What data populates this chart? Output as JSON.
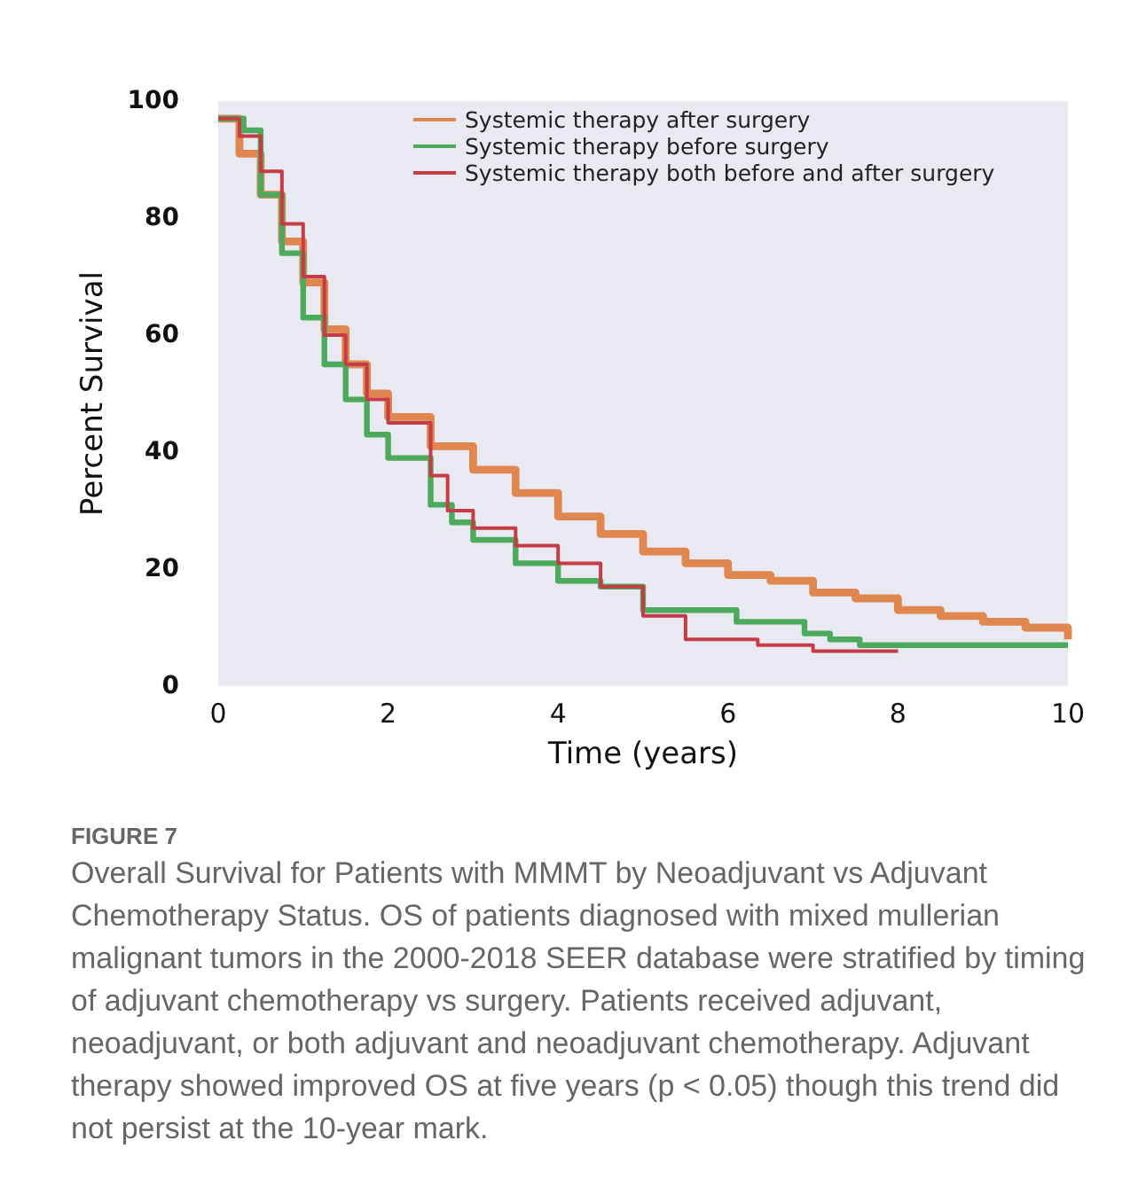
{
  "chart_data": {
    "type": "step",
    "title": "FIGURE 7",
    "xlabel": "Time (years)",
    "ylabel": "Percent Survival",
    "annotations": [
      "Overall Survival for Patients with MMMT by Neoadjuvant vs Adjuvant Chemotherapy Status. OS of patients diagnosed with mixed mullerian malignant tumors in the 2000-2018 SEER database were stratified by timing of adjuvant chemotherapy vs surgery. Patients received adjuvant, neoadjuvant, or both adjuvant and neoadjuvant chemotherapy. Adjuvant therapy showed improved OS at five years (p < 0.05) though this trend did not persist at the 10-year mark."
    ],
    "xlim": [
      0,
      10
    ],
    "xticks": [
      0,
      2,
      4,
      6,
      8,
      10
    ],
    "ylim": [
      0,
      100
    ],
    "yticks": [
      0,
      20,
      40,
      60,
      80,
      100
    ],
    "grid": false,
    "legend": "top right",
    "marker": "none",
    "line_style": "solid",
    "series": [
      {
        "name": "Systemic therapy after surgery",
        "color": "#e0874f",
        "x": [
          0,
          0.25,
          0.5,
          0.75,
          1,
          1.25,
          1.5,
          1.75,
          2,
          2.5,
          3,
          3.5,
          4,
          4.5,
          5,
          5.5,
          6,
          6.5,
          7,
          7.5,
          8,
          8.5,
          9,
          9.5,
          10
        ],
        "values": [
          97,
          91,
          84,
          76,
          69,
          61,
          55,
          50,
          46,
          41,
          37,
          33,
          29,
          26,
          23,
          21,
          19,
          18,
          16,
          15,
          13,
          12,
          11,
          10,
          8
        ]
      },
      {
        "name": "Systemic therapy before surgery",
        "color": "#4caa5c",
        "x": [
          0,
          0.3,
          0.5,
          0.75,
          1,
          1.25,
          1.5,
          1.75,
          2,
          2.5,
          2.75,
          3,
          3.5,
          4,
          4.5,
          5,
          6.1,
          6.9,
          7.2,
          7.55,
          10
        ],
        "values": [
          97,
          95,
          84,
          74,
          63,
          55,
          49,
          43,
          39,
          31,
          28,
          25,
          21,
          18,
          17,
          13,
          11,
          9,
          8,
          7,
          7
        ]
      },
      {
        "name": "Systemic therapy both before and after surgery",
        "color": "#c63c46",
        "x": [
          0,
          0.25,
          0.5,
          0.75,
          1,
          1.25,
          1.5,
          1.75,
          2,
          2.5,
          2.7,
          3,
          3.5,
          4,
          4.5,
          5,
          5.5,
          6.35,
          7,
          8
        ],
        "values": [
          97,
          94,
          88,
          79,
          70,
          60,
          55,
          49,
          45,
          36,
          30,
          27,
          24,
          21,
          17,
          12,
          8,
          7,
          6,
          6
        ]
      }
    ]
  }
}
